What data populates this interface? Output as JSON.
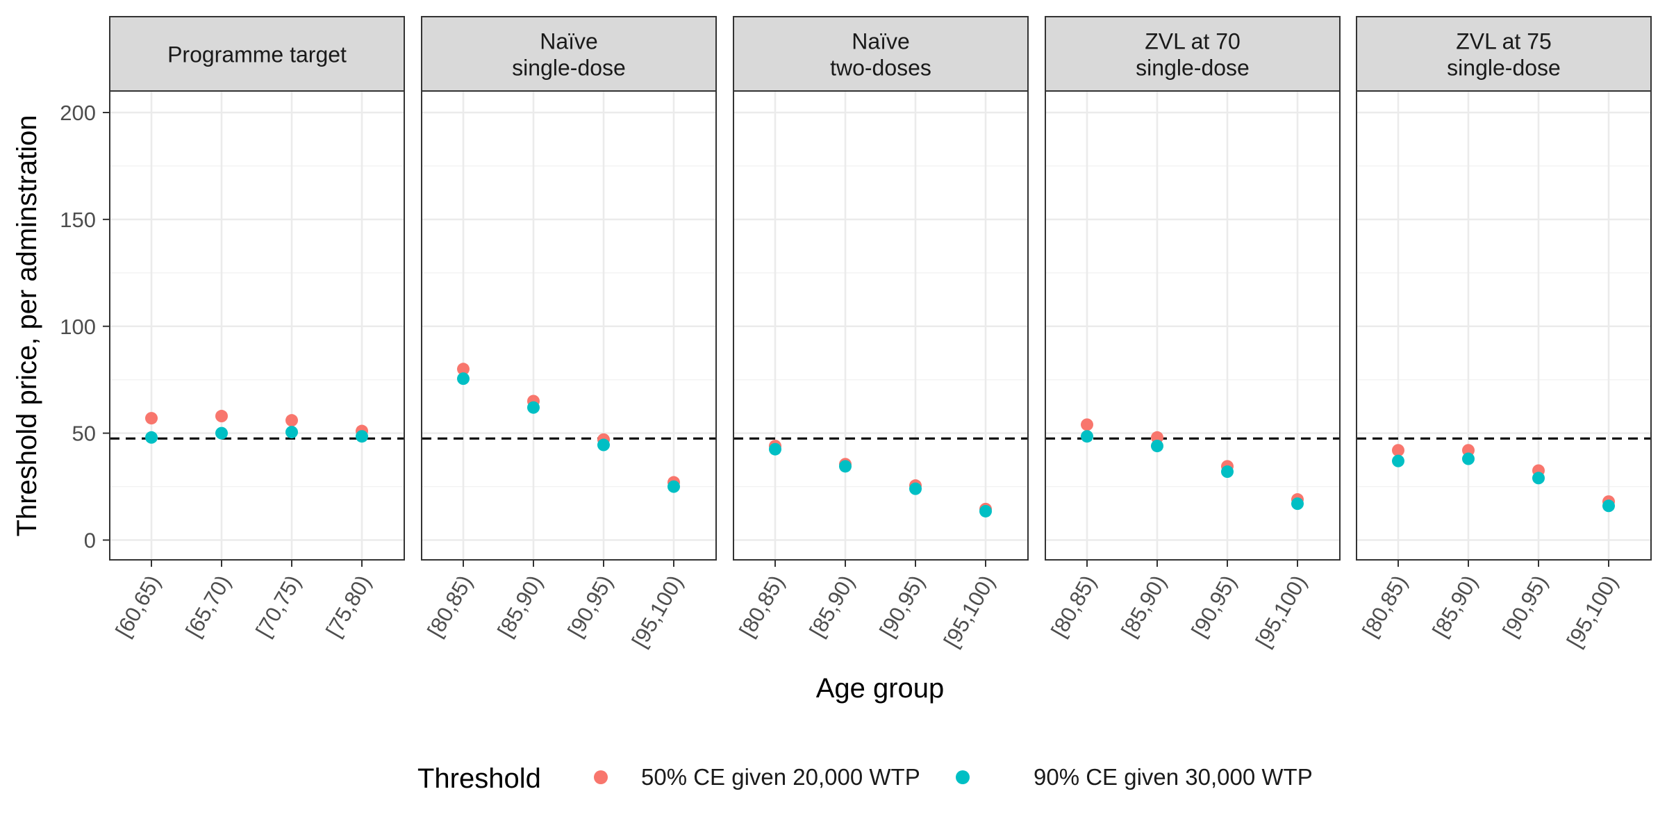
{
  "chart_data": {
    "type": "scatter",
    "xlabel": "Age group",
    "ylabel": "Threshold price, per adminstration",
    "ylim": [
      -10,
      240
    ],
    "y_ticks": [
      0,
      50,
      100,
      150,
      200
    ],
    "reference_line": {
      "y": 47.5,
      "style": "dashed"
    },
    "grid": true,
    "legend": {
      "title": "Threshold",
      "placement": "bottom",
      "entries": [
        "50% CE given 20,000 WTP",
        "90% CE given 30,000 WTP"
      ]
    },
    "colors": {
      "series_50": "#F8766D",
      "series_90": "#00BFC4",
      "strip": "#D9D9D9",
      "grid": "#EBEBEB"
    },
    "panels": [
      {
        "title_lines": [
          "Programme target"
        ],
        "categories": [
          "[60,65)",
          "[65,70)",
          "[70,75)",
          "[75,80)"
        ],
        "series": [
          {
            "name": "50% CE given 20,000 WTP",
            "values": [
              57,
              58,
              56,
              51
            ]
          },
          {
            "name": "90% CE given 30,000 WTP",
            "values": [
              48,
              50,
              50.5,
              48.5
            ]
          }
        ]
      },
      {
        "title_lines": [
          "Naïve",
          "single-dose"
        ],
        "categories": [
          "[80,85)",
          "[85,90)",
          "[90,95)",
          "[95,100)"
        ],
        "series": [
          {
            "name": "50% CE given 20,000 WTP",
            "values": [
              80,
              65,
              47,
              27
            ]
          },
          {
            "name": "90% CE given 30,000 WTP",
            "values": [
              75.5,
              62,
              44.5,
              25
            ]
          }
        ]
      },
      {
        "title_lines": [
          "Naïve",
          "two-doses"
        ],
        "categories": [
          "[80,85)",
          "[85,90)",
          "[90,95)",
          "[95,100)"
        ],
        "series": [
          {
            "name": "50% CE given 20,000 WTP",
            "values": [
              44,
              35.5,
              25.5,
              14.5
            ]
          },
          {
            "name": "90% CE given 30,000 WTP",
            "values": [
              42.5,
              34.5,
              24,
              13.5
            ]
          }
        ]
      },
      {
        "title_lines": [
          "ZVL at 70",
          "single-dose"
        ],
        "categories": [
          "[80,85)",
          "[85,90)",
          "[90,95)",
          "[95,100)"
        ],
        "series": [
          {
            "name": "50% CE given 20,000 WTP",
            "values": [
              54,
              48,
              34.5,
              19
            ]
          },
          {
            "name": "90% CE given 30,000 WTP",
            "values": [
              48.5,
              44,
              32,
              17
            ]
          }
        ]
      },
      {
        "title_lines": [
          "ZVL at 75",
          "single-dose"
        ],
        "categories": [
          "[80,85)",
          "[85,90)",
          "[90,95)",
          "[95,100)"
        ],
        "series": [
          {
            "name": "50% CE given 20,000 WTP",
            "values": [
              42,
              42,
              32.5,
              18
            ]
          },
          {
            "name": "90% CE given 30,000 WTP",
            "values": [
              37,
              38,
              29,
              16
            ]
          }
        ]
      }
    ]
  }
}
